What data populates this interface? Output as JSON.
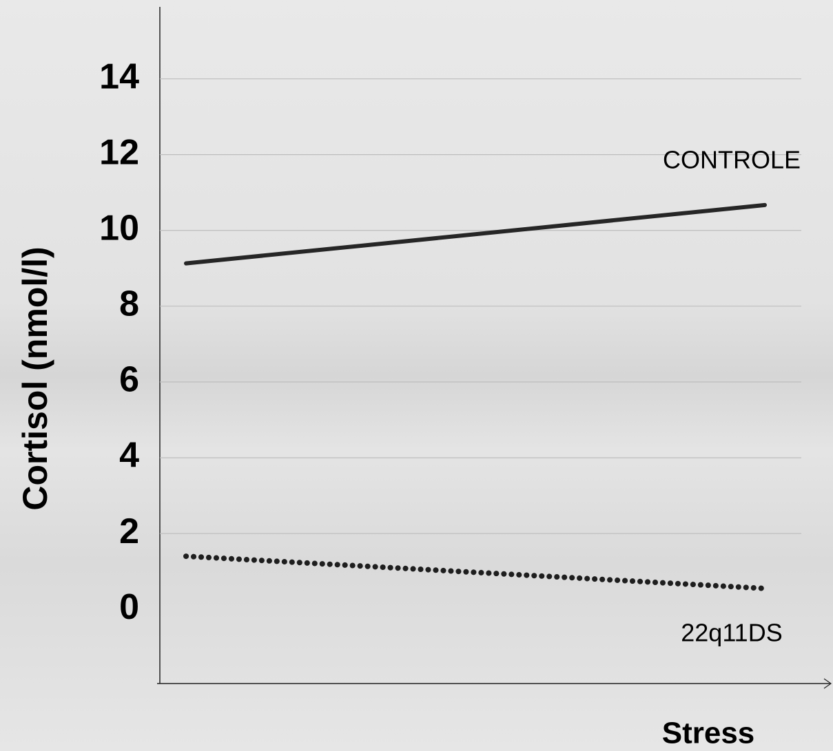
{
  "chart_data": {
    "type": "line",
    "categories": [
      null,
      null
    ],
    "series": [
      {
        "name": "CONTROLE",
        "color": "#262626",
        "line_style": "solid",
        "values": [
          9.13,
          10.67
        ]
      },
      {
        "name": "22q11DS",
        "color": "#1e1e1e",
        "line_style": "dotted",
        "values": [
          1.4,
          0.55
        ]
      }
    ],
    "y_label": "Cortisol (nmol/l)",
    "x_label": "Stress",
    "ylim": [
      -1.96,
      15.9
    ],
    "yticks": [
      0,
      2,
      4,
      6,
      8,
      10,
      12,
      14
    ],
    "grid": true
  }
}
